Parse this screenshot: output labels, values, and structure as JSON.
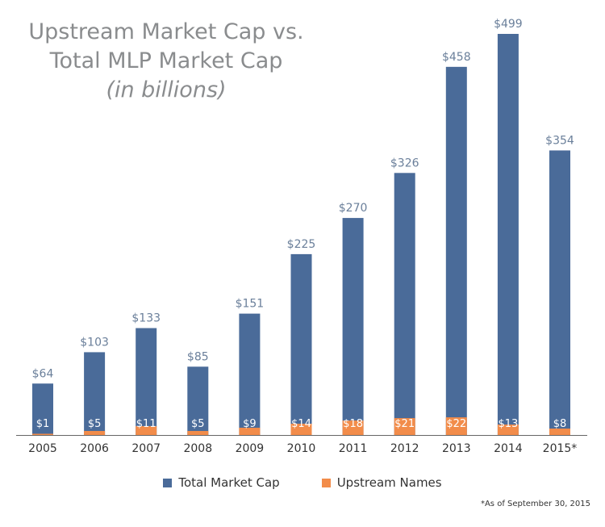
{
  "title": {
    "line1": "Upstream Market Cap vs.",
    "line2": "Total MLP Market Cap",
    "line3": "(in billions)"
  },
  "colors": {
    "total": "#4a6b99",
    "upstream": "#f28c4a",
    "axis": "#666666"
  },
  "chart_data": {
    "type": "bar",
    "categories": [
      "2005",
      "2006",
      "2007",
      "2008",
      "2009",
      "2010",
      "2011",
      "2012",
      "2013",
      "2014",
      "2015*"
    ],
    "series": [
      {
        "name": "Total Market Cap",
        "values": [
          64,
          103,
          133,
          85,
          151,
          225,
          270,
          326,
          458,
          499,
          354
        ],
        "labels": [
          "$64",
          "$103",
          "$133",
          "$85",
          "$151",
          "$225",
          "$270",
          "$326",
          "$458",
          "$499",
          "$354"
        ]
      },
      {
        "name": "Upstream Names",
        "values": [
          1,
          5,
          11,
          5,
          9,
          14,
          18,
          21,
          22,
          13,
          8
        ],
        "labels": [
          "$1",
          "$5",
          "$11",
          "$5",
          "$9",
          "$14",
          "$18",
          "$21",
          "$22",
          "$13",
          "$8"
        ]
      }
    ],
    "ylim": [
      0,
      499
    ],
    "grid": false,
    "legend_position": "bottom-center"
  },
  "legend": {
    "total_label": "Total Market Cap",
    "upstream_label": "Upstream Names"
  },
  "footnote": "*As of September 30, 2015"
}
